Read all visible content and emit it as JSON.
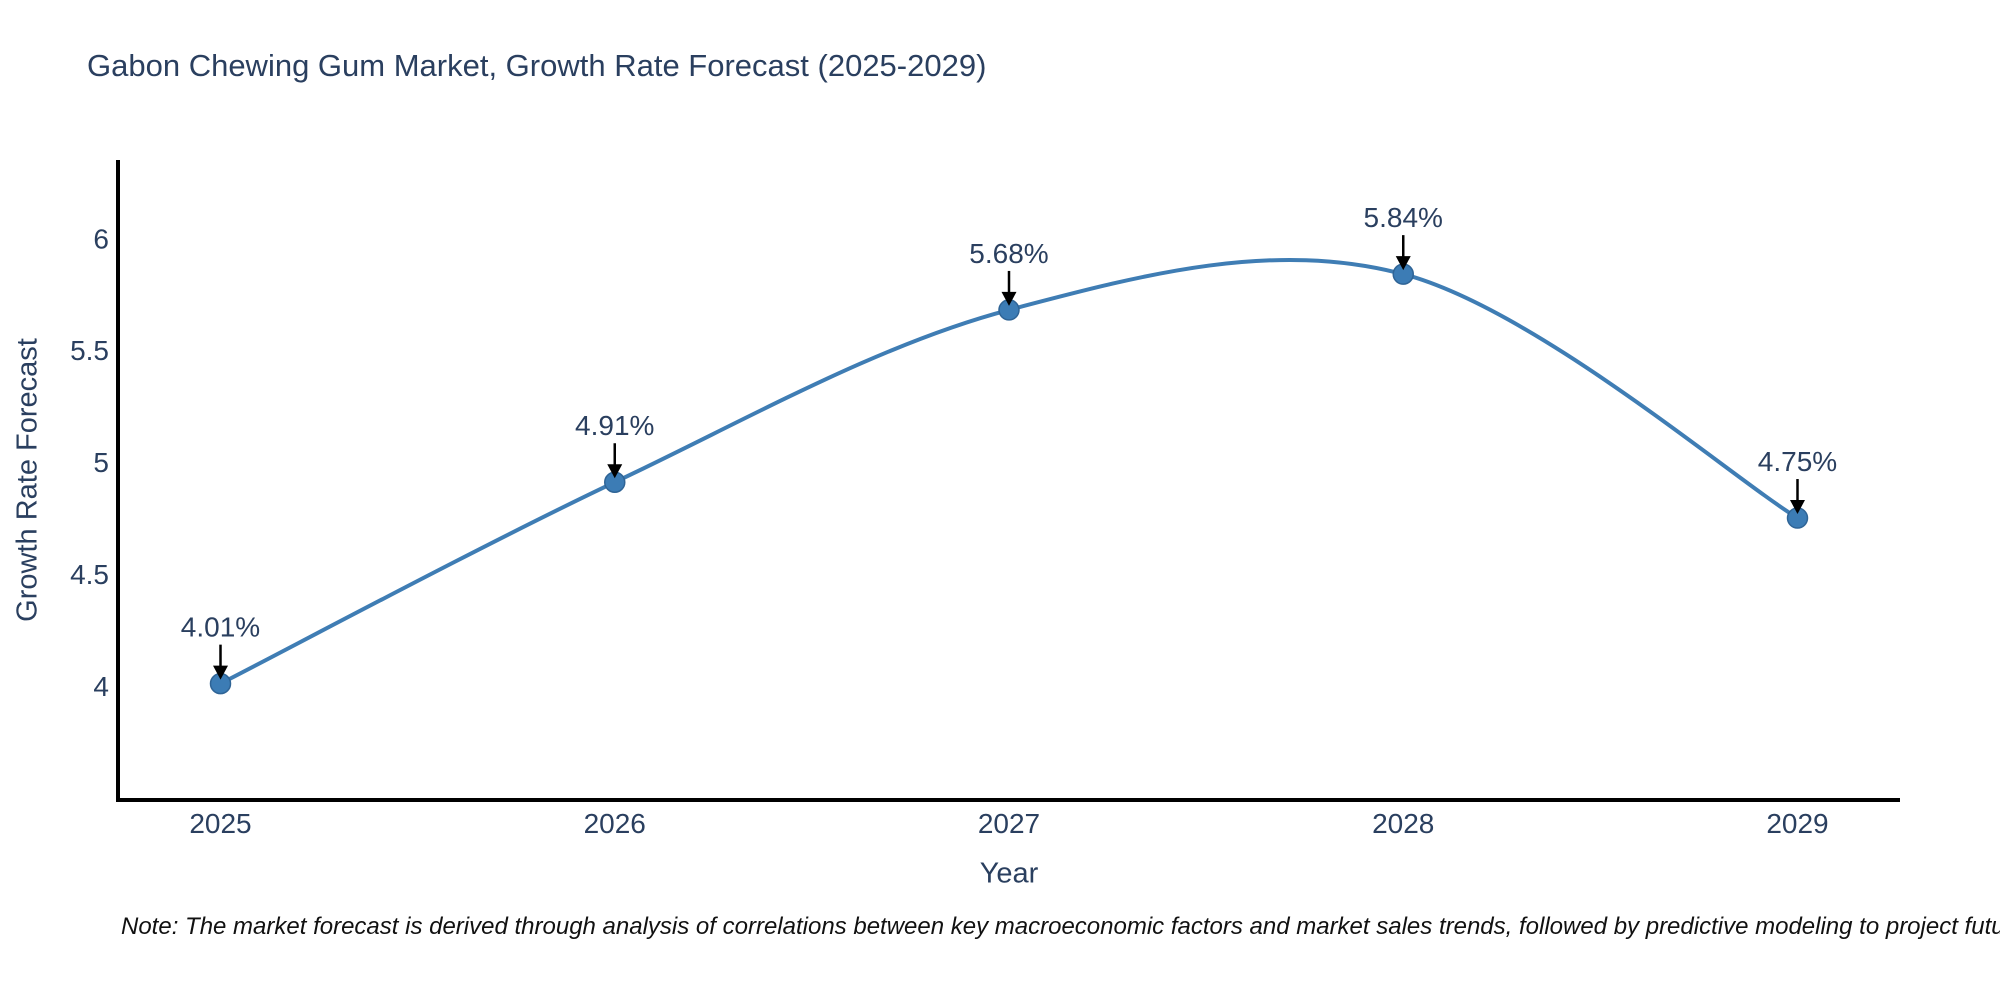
{
  "note": {
    "text": "Note: The market forecast is derived through analysis of correlations between key macroeconomic factors and market sales trends, followed by predictive modeling to project future sales"
  },
  "chart_data": {
    "type": "line",
    "title": "Gabon Chewing Gum Market, Growth Rate Forecast (2025-2029)",
    "xlabel": "Year",
    "ylabel": "Growth Rate Forecast",
    "line_shape": "spline",
    "grid": false,
    "legend": "none",
    "x": [
      2025,
      2026,
      2027,
      2028,
      2029
    ],
    "y": [
      4.01,
      4.91,
      5.68,
      5.84,
      4.75
    ],
    "point_labels": [
      "4.01%",
      "4.91%",
      "5.68%",
      "5.84%",
      "4.75%"
    ],
    "xtick_labels": [
      "2025",
      "2026",
      "2027",
      "2028",
      "2029"
    ],
    "ytick_values": [
      4,
      4.5,
      5,
      5.5,
      6
    ],
    "ytick_labels": [
      "4",
      "4.5",
      "5",
      "5.5",
      "6"
    ],
    "xlim": [
      2024.74,
      2029.26
    ],
    "ylim": [
      3.49,
      6.35
    ],
    "colors": {
      "line": "#3f7db4",
      "marker": "#3c7cb5",
      "marker_edge": "#2f6496",
      "axis": "#000000",
      "tick_text": "#2a3f5f",
      "annotation_text": "#2a3f5f",
      "arrow": "#000000",
      "title_text": "#2a3f5f"
    }
  }
}
